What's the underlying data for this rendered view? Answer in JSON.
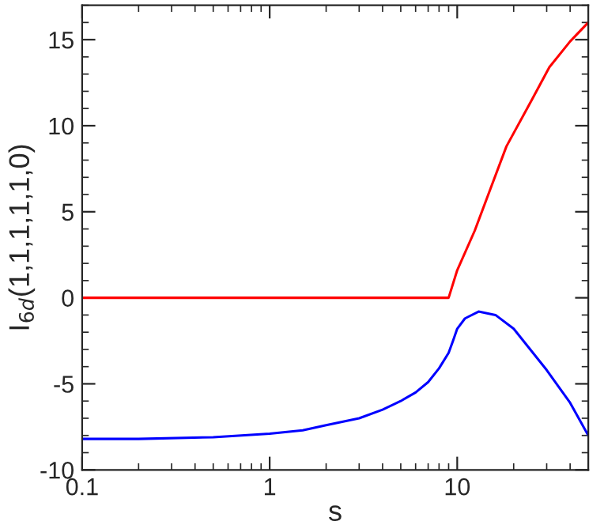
{
  "chart_data": {
    "type": "line",
    "xlabel": "s",
    "ylabel": "I$_{6d}$(1,1,1,1,1,0)",
    "log": "x",
    "grid": false,
    "legend": false,
    "marker": "none",
    "line_style": "solid",
    "xlim": [
      0.1,
      50
    ],
    "xticks": [
      {
        "value": 0.1,
        "label": "0.1"
      },
      1,
      10
    ],
    "ylim": [
      -10,
      17
    ],
    "yticks": [
      -10,
      -5,
      0,
      5,
      10,
      15
    ],
    "series": [
      {
        "color": "#ff0000",
        "x": [
          0.1,
          1,
          5,
          9,
          10,
          12.4,
          15,
          18.3,
          25,
          31,
          40,
          50
        ],
        "values": [
          0,
          0,
          0,
          0,
          1.6,
          3.9,
          6.3,
          8.8,
          11.5,
          13.4,
          14.9,
          16
        ]
      },
      {
        "color": "#0000ff",
        "x": [
          0.1,
          0.2,
          0.5,
          1,
          1.5,
          2,
          3,
          4,
          5,
          6,
          7,
          8,
          9,
          9.5,
          10,
          11,
          13,
          16,
          20,
          30,
          40,
          50
        ],
        "values": [
          -8.2,
          -8.2,
          -8.1,
          -7.9,
          -7.7,
          -7.4,
          -7.0,
          -6.5,
          -6.0,
          -5.5,
          -4.9,
          -4.1,
          -3.2,
          -2.5,
          -1.8,
          -1.2,
          -0.8,
          -1.0,
          -1.8,
          -4.2,
          -6.1,
          -8.0
        ]
      }
    ]
  }
}
